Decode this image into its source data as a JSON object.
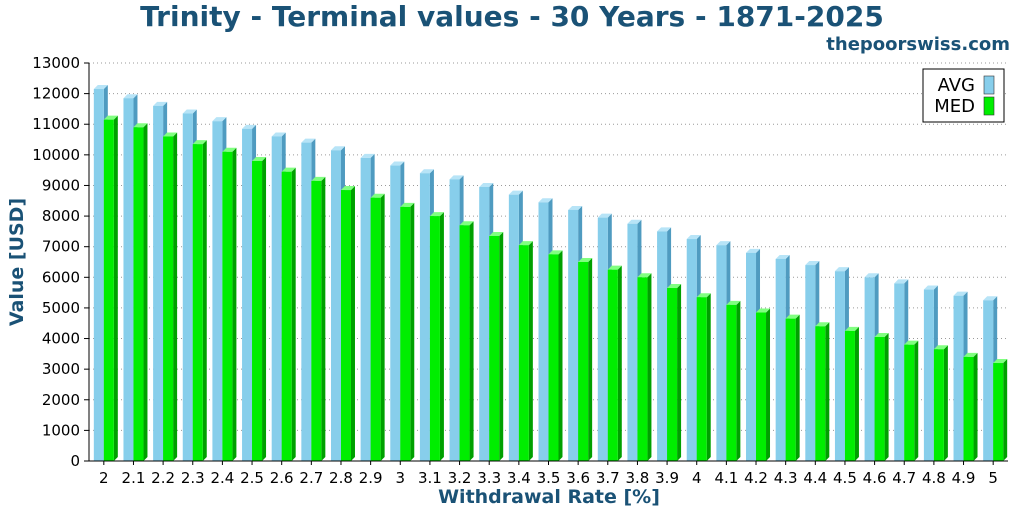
{
  "header": {
    "title": "Trinity - Terminal values - 30 Years - 1871-2025",
    "site": "thepoorswiss.com"
  },
  "colors": {
    "avg": "#87ceeb",
    "med": "#00ee00",
    "title": "#1a5276"
  },
  "chart_data": {
    "type": "bar",
    "title": "Trinity - Terminal values - 30 Years - 1871-2025",
    "xlabel": "Withdrawal Rate [%]",
    "ylabel": "Value [USD]",
    "ylim": [
      0,
      13000
    ],
    "yticks": [
      "0",
      "1000",
      "2000",
      "3000",
      "4000",
      "5000",
      "6000",
      "7000",
      "8000",
      "9000",
      "10000",
      "11000",
      "12000",
      "13000"
    ],
    "grid": true,
    "legend_position": "top-right",
    "categories": [
      "2",
      "2.1",
      "2.2",
      "2.3",
      "2.4",
      "2.5",
      "2.6",
      "2.7",
      "2.8",
      "2.9",
      "3",
      "3.1",
      "3.2",
      "3.3",
      "3.4",
      "3.5",
      "3.6",
      "3.7",
      "3.8",
      "3.9",
      "4",
      "4.1",
      "4.2",
      "4.3",
      "4.4",
      "4.5",
      "4.6",
      "4.7",
      "4.8",
      "4.9",
      "5"
    ],
    "series": [
      {
        "name": "AVG",
        "values": [
          12150,
          11850,
          11600,
          11350,
          11100,
          10850,
          10600,
          10400,
          10150,
          9900,
          9650,
          9400,
          9200,
          8950,
          8700,
          8450,
          8200,
          7950,
          7750,
          7500,
          7250,
          7050,
          6800,
          6600,
          6400,
          6200,
          6000,
          5800,
          5600,
          5400,
          5250
        ]
      },
      {
        "name": "MED",
        "values": [
          11150,
          10900,
          10600,
          10350,
          10100,
          9800,
          9450,
          9150,
          8850,
          8600,
          8300,
          8000,
          7700,
          7350,
          7050,
          6750,
          6500,
          6250,
          6000,
          5650,
          5350,
          5100,
          4850,
          4650,
          4400,
          4250,
          4050,
          3800,
          3650,
          3400,
          3200
        ]
      }
    ]
  }
}
